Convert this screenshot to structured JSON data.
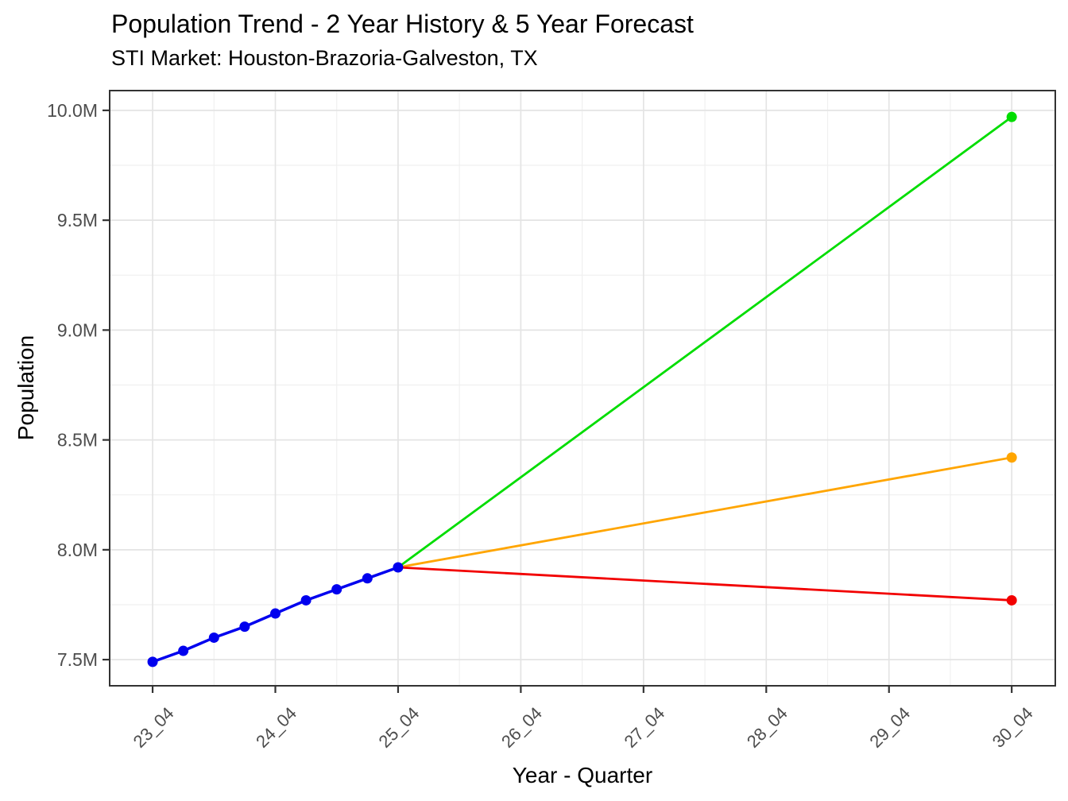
{
  "chart_data": {
    "type": "line",
    "title": "Population Trend - 2 Year History & 5 Year Forecast",
    "subtitle": "STI Market: Houston-Brazoria-Galveston, TX",
    "xlabel": "Year - Quarter",
    "ylabel": "Population",
    "legend": false,
    "grid": true,
    "x_unit": "quarters offset from 23_04",
    "xlim_quarters": [
      -1.4,
      29.42
    ],
    "ylim_millions": [
      7.381,
      10.09
    ],
    "x_ticks": [
      {
        "label": "23_04",
        "q": 0
      },
      {
        "label": "24_04",
        "q": 4
      },
      {
        "label": "25_04",
        "q": 8
      },
      {
        "label": "26_04",
        "q": 12
      },
      {
        "label": "27_04",
        "q": 16
      },
      {
        "label": "28_04",
        "q": 20
      },
      {
        "label": "29_04",
        "q": 24
      },
      {
        "label": "30_04",
        "q": 28
      }
    ],
    "x_minor_quarters": [
      2,
      6,
      10,
      14,
      18,
      22,
      26
    ],
    "y_ticks": [
      {
        "label": "7.5M",
        "v": 7.5
      },
      {
        "label": "8.0M",
        "v": 8.0
      },
      {
        "label": "8.5M",
        "v": 8.5
      },
      {
        "label": "9.0M",
        "v": 9.0
      },
      {
        "label": "9.5M",
        "v": 9.5
      },
      {
        "label": "10.0M",
        "v": 10.0
      }
    ],
    "y_minor_millions": [
      7.75,
      8.25,
      8.75,
      9.25,
      9.75
    ],
    "series": [
      {
        "name": "history",
        "color": "#0000EE",
        "points": "all",
        "line_width": 3.5,
        "x_labels": [
          "23_04",
          "24_01",
          "24_02",
          "24_03",
          "24_04",
          "25_01",
          "25_02",
          "25_03",
          "25_04"
        ],
        "q": [
          0,
          1,
          2,
          3,
          4,
          5,
          6,
          7,
          8
        ],
        "values_millions": [
          7.49,
          7.54,
          7.6,
          7.65,
          7.71,
          7.77,
          7.82,
          7.87,
          7.92
        ]
      },
      {
        "name": "forecast-upside",
        "color": "#00DD00",
        "points": "last",
        "line_width": 2.8,
        "x_labels": [
          "25_04",
          "30_04"
        ],
        "q": [
          8,
          28
        ],
        "values_millions": [
          7.92,
          9.97
        ]
      },
      {
        "name": "forecast-base",
        "color": "#FFA500",
        "points": "last",
        "line_width": 2.8,
        "x_labels": [
          "25_04",
          "30_04"
        ],
        "q": [
          8,
          28
        ],
        "values_millions": [
          7.92,
          8.42
        ]
      },
      {
        "name": "forecast-downside",
        "color": "#F20000",
        "points": "last",
        "line_width": 2.8,
        "x_labels": [
          "25_04",
          "30_04"
        ],
        "q": [
          8,
          28
        ],
        "values_millions": [
          7.92,
          7.77
        ]
      }
    ],
    "style_colors": {
      "grid_major": "#E4E4E4",
      "grid_minor": "#F0F0F0",
      "panel_border": "#333333",
      "tick_mark": "#333333",
      "tick_label": "#4D4D4D",
      "background": "#FFFFFF"
    }
  }
}
